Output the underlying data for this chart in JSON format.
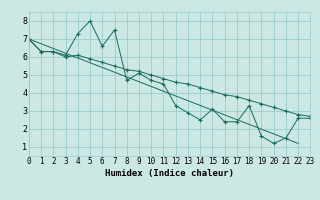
{
  "xlabel": "Humidex (Indice chaleur)",
  "bg_color": "#cce8e4",
  "grid_color": "#99cccc",
  "line_color": "#1a6b5a",
  "series1_y": [
    7.0,
    6.3,
    6.3,
    6.1,
    7.3,
    8.0,
    6.6,
    7.5,
    4.7,
    5.1,
    4.7,
    4.5,
    3.3,
    2.9,
    2.5,
    3.1,
    2.4,
    2.4,
    3.3,
    1.6,
    1.2,
    1.5,
    2.6,
    2.6
  ],
  "series2_y": [
    7.0,
    6.3,
    6.3,
    6.0,
    6.1,
    5.9,
    5.7,
    5.5,
    5.3,
    5.2,
    5.0,
    4.8,
    4.6,
    4.5,
    4.3,
    4.1,
    3.9,
    3.8,
    3.6,
    3.4,
    3.2,
    3.0,
    2.8,
    2.7
  ],
  "series3_x": [
    0,
    22
  ],
  "series3_y": [
    7.0,
    1.2
  ],
  "xlim": [
    0,
    23
  ],
  "ylim": [
    0.5,
    8.5
  ],
  "xticks": [
    0,
    1,
    2,
    3,
    4,
    5,
    6,
    7,
    8,
    9,
    10,
    11,
    12,
    13,
    14,
    15,
    16,
    17,
    18,
    19,
    20,
    21,
    22,
    23
  ],
  "yticks": [
    1,
    2,
    3,
    4,
    5,
    6,
    7,
    8
  ],
  "xtick_labels": [
    "0",
    "1",
    "2",
    "3",
    "4",
    "5",
    "6",
    "7",
    "8",
    "9",
    "10",
    "11",
    "12",
    "13",
    "14",
    "15",
    "16",
    "17",
    "18",
    "19",
    "20",
    "21",
    "22",
    "23"
  ],
  "ytick_labels": [
    "1",
    "2",
    "3",
    "4",
    "5",
    "6",
    "7",
    "8"
  ],
  "xlabel_fontsize": 6.5,
  "tick_fontsize": 5.5
}
